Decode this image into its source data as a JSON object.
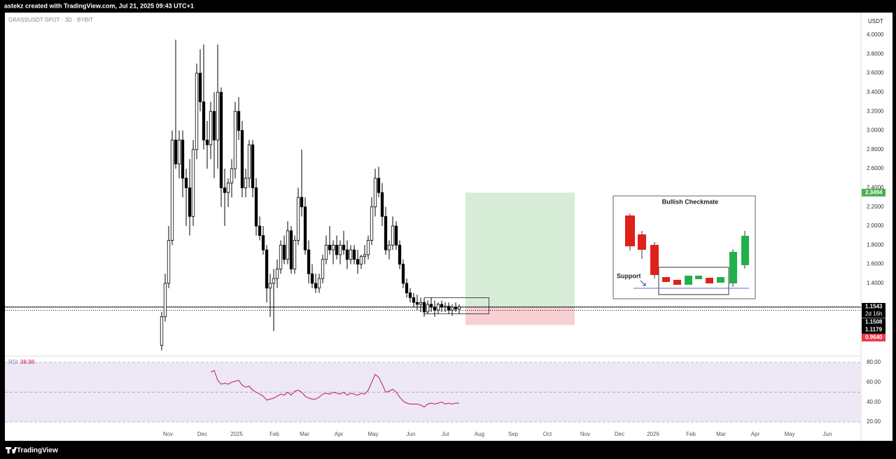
{
  "header": {
    "caption": "astekz created with TradingView.com, Jul 21, 2025 09:43 UTC+1"
  },
  "footer": {
    "brand": "TradingView"
  },
  "inset": {
    "title": "Bullish  Checkmate",
    "label": "Support"
  },
  "chart_data": [
    {
      "type": "candlestick",
      "title": "GRASSUSDT SPOT · 3D · BYBIT",
      "currency": "USDT",
      "up_color": "#ffffff",
      "down_color": "#000000",
      "border_color": "#000000",
      "ohlc": [
        [
          0.75,
          1.1,
          0.7,
          1.05
        ],
        [
          1.05,
          1.5,
          1.0,
          1.4
        ],
        [
          1.4,
          2.0,
          1.35,
          1.85
        ],
        [
          1.85,
          3.0,
          1.8,
          2.9
        ],
        [
          2.9,
          3.95,
          2.6,
          2.65
        ],
        [
          2.65,
          3.0,
          2.5,
          2.9
        ],
        [
          2.9,
          3.0,
          2.3,
          2.5
        ],
        [
          2.5,
          2.6,
          2.0,
          2.4
        ],
        [
          2.4,
          2.7,
          1.9,
          2.1
        ],
        [
          2.1,
          2.9,
          2.0,
          2.8
        ],
        [
          2.8,
          3.7,
          2.7,
          3.6
        ],
        [
          3.6,
          3.85,
          3.2,
          3.3
        ],
        [
          3.3,
          3.9,
          2.8,
          2.9
        ],
        [
          2.9,
          3.1,
          2.6,
          2.85
        ],
        [
          2.85,
          3.3,
          2.7,
          3.2
        ],
        [
          3.2,
          3.4,
          2.5,
          2.9
        ],
        [
          2.9,
          3.9,
          2.6,
          3.4
        ],
        [
          3.4,
          3.45,
          2.2,
          2.4
        ],
        [
          2.4,
          2.6,
          2.0,
          2.35
        ],
        [
          2.35,
          2.5,
          2.2,
          2.45
        ],
        [
          2.45,
          2.7,
          2.3,
          2.6
        ],
        [
          2.6,
          3.3,
          2.5,
          3.2
        ],
        [
          3.2,
          3.35,
          2.9,
          3.0
        ],
        [
          3.0,
          3.1,
          2.3,
          2.4
        ],
        [
          2.4,
          2.6,
          2.3,
          2.5
        ],
        [
          2.5,
          2.9,
          2.4,
          2.85
        ],
        [
          2.85,
          2.9,
          2.3,
          2.4
        ],
        [
          2.4,
          2.5,
          1.9,
          2.0
        ],
        [
          2.0,
          2.1,
          1.85,
          1.9
        ],
        [
          1.9,
          2.0,
          1.7,
          1.75
        ],
        [
          1.75,
          1.8,
          1.2,
          1.35
        ],
        [
          1.35,
          1.5,
          1.05,
          1.4
        ],
        [
          1.4,
          1.55,
          0.9,
          1.45
        ],
        [
          1.45,
          1.65,
          1.35,
          1.55
        ],
        [
          1.55,
          1.85,
          1.5,
          1.8
        ],
        [
          1.8,
          1.9,
          1.6,
          1.65
        ],
        [
          1.65,
          2.05,
          1.6,
          1.95
        ],
        [
          1.95,
          2.0,
          1.5,
          1.55
        ],
        [
          1.55,
          1.9,
          1.5,
          1.85
        ],
        [
          1.85,
          2.4,
          1.8,
          2.3
        ],
        [
          2.3,
          2.8,
          2.1,
          2.2
        ],
        [
          2.2,
          2.3,
          1.7,
          1.75
        ],
        [
          1.75,
          1.85,
          1.4,
          1.5
        ],
        [
          1.5,
          1.6,
          1.35,
          1.4
        ],
        [
          1.4,
          1.5,
          1.3,
          1.35
        ],
        [
          1.35,
          1.5,
          1.3,
          1.45
        ],
        [
          1.45,
          1.7,
          1.4,
          1.65
        ],
        [
          1.65,
          1.9,
          1.6,
          1.8
        ],
        [
          1.8,
          2.0,
          1.7,
          1.75
        ],
        [
          1.75,
          1.85,
          1.6,
          1.8
        ],
        [
          1.8,
          1.9,
          1.65,
          1.7
        ],
        [
          1.7,
          1.85,
          1.6,
          1.8
        ],
        [
          1.8,
          1.95,
          1.7,
          1.75
        ],
        [
          1.75,
          1.85,
          1.55,
          1.65
        ],
        [
          1.65,
          1.8,
          1.6,
          1.75
        ],
        [
          1.75,
          1.8,
          1.6,
          1.65
        ],
        [
          1.65,
          1.75,
          1.5,
          1.6
        ],
        [
          1.6,
          1.7,
          1.55,
          1.68
        ],
        [
          1.68,
          1.8,
          1.6,
          1.7
        ],
        [
          1.7,
          1.9,
          1.65,
          1.85
        ],
        [
          1.85,
          2.3,
          1.8,
          2.2
        ],
        [
          2.2,
          2.6,
          2.1,
          2.5
        ],
        [
          2.5,
          2.62,
          2.3,
          2.35
        ],
        [
          2.35,
          2.45,
          2.0,
          2.1
        ],
        [
          2.1,
          2.2,
          1.7,
          1.75
        ],
        [
          1.75,
          1.85,
          1.65,
          1.8
        ],
        [
          1.8,
          2.1,
          1.75,
          2.0
        ],
        [
          2.0,
          2.05,
          1.75,
          1.8
        ],
        [
          1.8,
          1.85,
          1.55,
          1.6
        ],
        [
          1.6,
          1.65,
          1.35,
          1.4
        ],
        [
          1.4,
          1.45,
          1.25,
          1.3
        ],
        [
          1.3,
          1.35,
          1.2,
          1.25
        ],
        [
          1.25,
          1.3,
          1.15,
          1.2
        ],
        [
          1.2,
          1.28,
          1.12,
          1.18
        ],
        [
          1.18,
          1.25,
          1.1,
          1.2
        ],
        [
          1.2,
          1.24,
          1.05,
          1.1
        ],
        [
          1.1,
          1.22,
          1.08,
          1.18
        ],
        [
          1.18,
          1.25,
          1.1,
          1.15
        ],
        [
          1.15,
          1.22,
          1.05,
          1.12
        ],
        [
          1.12,
          1.2,
          1.08,
          1.18
        ],
        [
          1.18,
          1.22,
          1.1,
          1.15
        ],
        [
          1.15,
          1.2,
          1.1,
          1.16
        ],
        [
          1.16,
          1.2,
          1.08,
          1.12
        ],
        [
          1.12,
          1.18,
          1.06,
          1.15
        ],
        [
          1.15,
          1.2,
          1.1,
          1.13
        ],
        [
          1.13,
          1.18,
          1.08,
          1.1543
        ]
      ],
      "xlim": [
        -44.8,
        199.8
      ],
      "xticks": [
        {
          "value": 1.8,
          "label": "Nov"
        },
        {
          "value": 11.6,
          "label": "Dec"
        },
        {
          "value": 21.4,
          "label": "2025"
        },
        {
          "value": 32.2,
          "label": "Feb"
        },
        {
          "value": 40.8,
          "label": "Mar"
        },
        {
          "value": 50.6,
          "label": "Apr"
        },
        {
          "value": 60.4,
          "label": "May"
        },
        {
          "value": 71.2,
          "label": "Jun"
        },
        {
          "value": 81,
          "label": "Jul"
        },
        {
          "value": 90.8,
          "label": "Aug"
        },
        {
          "value": 100.4,
          "label": "Sep"
        },
        {
          "value": 110.2,
          "label": "Oct"
        },
        {
          "value": 121,
          "label": "Nov"
        },
        {
          "value": 130.8,
          "label": "Dec"
        },
        {
          "value": 140.4,
          "label": "2026"
        },
        {
          "value": 151.2,
          "label": "Feb"
        },
        {
          "value": 159.8,
          "label": "Mar"
        },
        {
          "value": 169.6,
          "label": "Apr"
        },
        {
          "value": 179.4,
          "label": "May"
        },
        {
          "value": 190.2,
          "label": "Jun"
        }
      ],
      "ylim": [
        0.645,
        4.234
      ],
      "yticks": [
        {
          "value": 1.4,
          "label": "1.4000"
        },
        {
          "value": 1.6,
          "label": "1.6000"
        },
        {
          "value": 1.8,
          "label": "1.8000"
        },
        {
          "value": 2.0,
          "label": "2.0000"
        },
        {
          "value": 2.2,
          "label": "2.2000"
        },
        {
          "value": 2.4,
          "label": "2.4000"
        },
        {
          "value": 2.6,
          "label": "2.6000"
        },
        {
          "value": 2.8,
          "label": "2.8000"
        },
        {
          "value": 3.0,
          "label": "3.0000"
        },
        {
          "value": 3.2,
          "label": "3.2000"
        },
        {
          "value": 3.4,
          "label": "3.4000"
        },
        {
          "value": 3.6,
          "label": "3.6000"
        },
        {
          "value": 3.8,
          "label": "3.8000"
        },
        {
          "value": 4.0,
          "label": "4.0000"
        }
      ],
      "price_tags": [
        {
          "value": 1.1543,
          "label": "1.1543",
          "color": "#000000"
        },
        {
          "value": 1.1508,
          "label": "1.1508",
          "color": "#000000"
        },
        {
          "value": 1.1179,
          "label": "1.1179",
          "color": "#000000"
        }
      ],
      "countdown": "2d 16h",
      "position": {
        "start": 86.8,
        "end": 118,
        "entry": 1.15,
        "target": {
          "value": 2.3494,
          "label": "2.3494"
        },
        "stop": {
          "value": 0.964,
          "label": "0.9640"
        },
        "profit_color": "#d7ecd6",
        "loss_color": "#f8d0d3",
        "target_color": "#4caf50",
        "stop_color": "#f23645"
      },
      "range_box": {
        "x": [
          75,
          93.5
        ],
        "y": [
          1.08,
          1.25
        ]
      }
    },
    {
      "type": "line",
      "name": "RSI",
      "last": 38.98,
      "color": "#c2185b",
      "values": [
        null,
        null,
        null,
        null,
        null,
        null,
        null,
        null,
        null,
        null,
        null,
        null,
        null,
        null,
        70,
        72,
        62,
        58,
        59,
        58,
        60,
        61,
        62,
        57,
        55,
        56,
        52,
        50,
        48,
        46,
        42,
        43,
        44,
        46,
        48,
        47,
        50,
        47,
        51,
        52,
        50,
        46,
        44,
        43,
        43,
        45,
        48,
        49,
        48,
        50,
        49,
        48,
        50,
        47,
        49,
        48,
        47,
        49,
        48,
        52,
        60,
        68,
        65,
        58,
        50,
        51,
        53,
        50,
        45,
        41,
        39,
        38,
        38,
        38,
        37,
        35,
        38,
        39,
        38,
        39,
        40,
        38,
        39,
        38,
        39,
        38.98
      ],
      "ylim": [
        15.1,
        85.6
      ],
      "yticks": [
        {
          "value": 20,
          "label": "20.00"
        },
        {
          "value": 40,
          "label": "40.00"
        },
        {
          "value": 60,
          "label": "60.00"
        },
        {
          "value": 80,
          "label": "80.00"
        }
      ],
      "levels": [
        80,
        50,
        20
      ],
      "band_color": "#ede7f6"
    }
  ]
}
